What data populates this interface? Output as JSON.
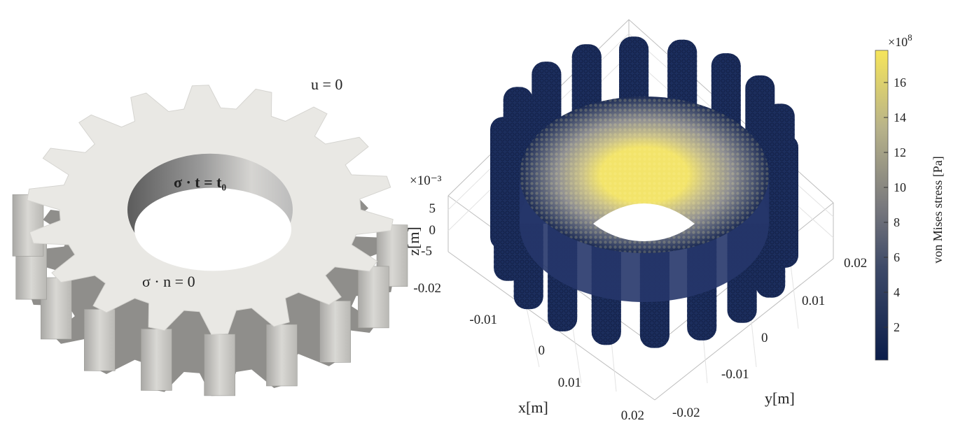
{
  "gear": {
    "teeth": 18,
    "bc_fixed": "u = 0",
    "bc_traction": "σ · t = t₀",
    "bc_free": "σ · n = 0"
  },
  "stress_plot": {
    "z_scale": "×10⁻³",
    "z_label": "z[m]",
    "x_label": "x[m]",
    "y_label": "y[m]",
    "z_ticks": [
      "5",
      "0",
      "-5"
    ],
    "x_ticks": [
      "-0.02",
      "-0.01",
      "0",
      "0.01",
      "0.02"
    ],
    "y_ticks": [
      "0.02",
      "0.01",
      "0",
      "-0.01",
      "-0.02"
    ]
  },
  "colorbar": {
    "title": "von Mises stress [Pa]",
    "scale_base": "×10",
    "scale_exp": "8",
    "ticks": [
      "16",
      "14",
      "12",
      "10",
      "8",
      "6",
      "4",
      "2"
    ],
    "colors": {
      "low": "#0b1d4a",
      "mid": "#7a7a7e",
      "high": "#f6e55a"
    }
  }
}
